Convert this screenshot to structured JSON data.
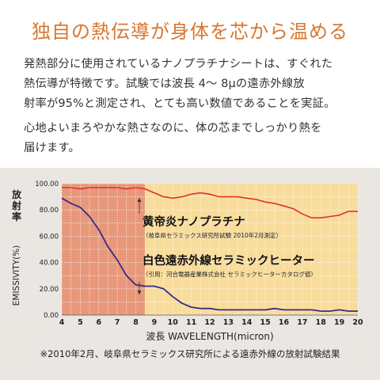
{
  "headline": "独自の熱伝導が身体を芯から温める",
  "paragraph1": {
    "lines": [
      "発熱部分に使用されているナノプラチナシートは、すぐれた",
      "熱伝導が特徴です。試験では波長 4～ 8μの遠赤外線放",
      "射率が95%と測定され、とても高い数値であることを実証。"
    ]
  },
  "paragraph2": {
    "lines": [
      "心地よいまろやかな熱さなのに、体の芯までしっかり熱を",
      "届けます。"
    ]
  },
  "footnote": "※2010年2月、岐阜県セラミックス研究所による遠赤外線の放射試験結果",
  "colors": {
    "headline": "#d9772e",
    "panel_bg": "#eae6e2",
    "highlight_band": "#e8987a",
    "plot_bg": "#f8dc9c",
    "grid": "#ffffff",
    "series_platinum": "#e0322a",
    "series_ceramic": "#3a2a8a"
  },
  "chart_data": {
    "type": "line",
    "ylabel_jp": "放射率",
    "ylabel_en": "EMISSIVITY(%)",
    "xlabel": "波長 WAVELENGTH(micron)",
    "xlim": [
      4,
      20
    ],
    "ylim": [
      0,
      100
    ],
    "x_ticks": [
      "4",
      "5",
      "6",
      "7",
      "8",
      "9",
      "10",
      "11",
      "12",
      "13",
      "14",
      "15",
      "16",
      "17",
      "18",
      "19",
      "20"
    ],
    "y_ticks": [
      "0.00",
      "20.00",
      "40.00",
      "60.00",
      "80.00",
      "100.00"
    ],
    "highlight_range": [
      4,
      8.5
    ],
    "grid": true,
    "series": [
      {
        "name": "黄帝炎ナノプラチナ",
        "sublabel": "（岐阜県セラミックス研究所試験 2010年2月測定）",
        "x": [
          4,
          4.5,
          5,
          5.5,
          6,
          6.5,
          7,
          7.5,
          8,
          8.5,
          9,
          9.5,
          10,
          10.5,
          11,
          11.5,
          12,
          12.5,
          13,
          13.5,
          14,
          14.5,
          15,
          15.5,
          16,
          16.5,
          17,
          17.5,
          18,
          18.5,
          19,
          19.5,
          20
        ],
        "values": [
          97,
          97,
          96,
          97,
          97,
          97,
          97,
          96,
          97,
          96,
          93,
          90,
          89,
          90,
          92,
          93,
          92,
          90,
          90,
          90,
          89,
          88,
          86,
          85,
          83,
          81,
          77,
          74,
          74,
          75,
          76,
          79,
          79
        ]
      },
      {
        "name": "白色遠赤外線セラミックヒーター",
        "sublabel": "（引用：河合電器産業株式会社 セラミックヒーターカタログ値）",
        "x": [
          4,
          4.5,
          5,
          5.5,
          6,
          6.5,
          7,
          7.5,
          8,
          8.5,
          9,
          9.5,
          10,
          10.5,
          11,
          11.5,
          12,
          12.5,
          13,
          13.5,
          14,
          14.5,
          15,
          15.5,
          16,
          16.5,
          17,
          17.5,
          18,
          18.5,
          19,
          19.5,
          20
        ],
        "values": [
          89,
          85,
          82,
          75,
          65,
          52,
          42,
          30,
          23,
          22,
          22,
          20,
          14,
          9,
          6,
          5,
          5,
          4,
          4,
          4,
          4,
          4,
          4,
          5,
          4,
          4,
          4,
          4,
          3,
          3,
          4,
          3,
          3
        ]
      }
    ]
  }
}
